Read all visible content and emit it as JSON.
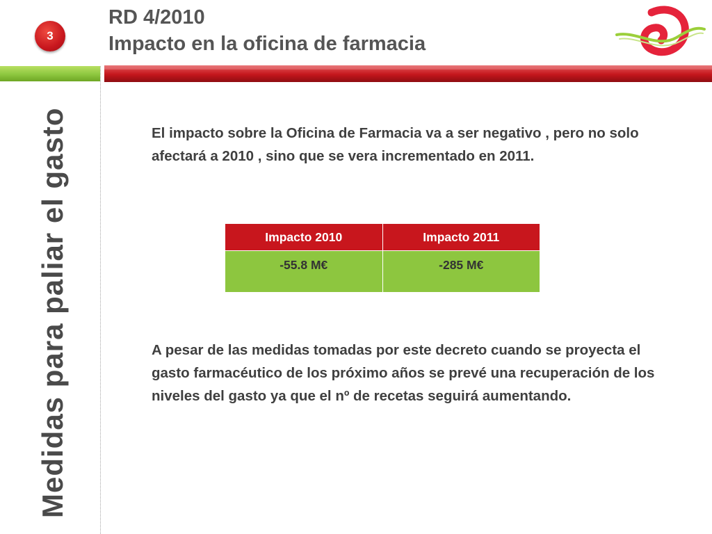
{
  "slide": {
    "number": "3",
    "title_line1": "RD 4/2010",
    "title_line2": "Impacto en la oficina de farmacia",
    "side_title": "Medidas para paliar el gasto"
  },
  "content": {
    "paragraph1": "El impacto sobre la Oficina de Farmacia  va a ser negativo , pero no solo afectará a 2010 , sino que se vera incrementado en 2011.",
    "paragraph2": "A pesar de las medidas tomadas por este decreto  cuando se proyecta  el gasto farmacéutico de los próximo años se prevé una recuperación de los niveles del gasto ya  que el nº de recetas seguirá aumentando."
  },
  "table": {
    "headers": [
      "Impacto 2010",
      "Impacto 2011"
    ],
    "values": [
      "-55.8 M€",
      "-285 M€"
    ]
  },
  "colors": {
    "accent_red": "#c8161d",
    "accent_green": "#8dc63f"
  },
  "icons": {
    "logo": "swirl-logo-icon"
  }
}
